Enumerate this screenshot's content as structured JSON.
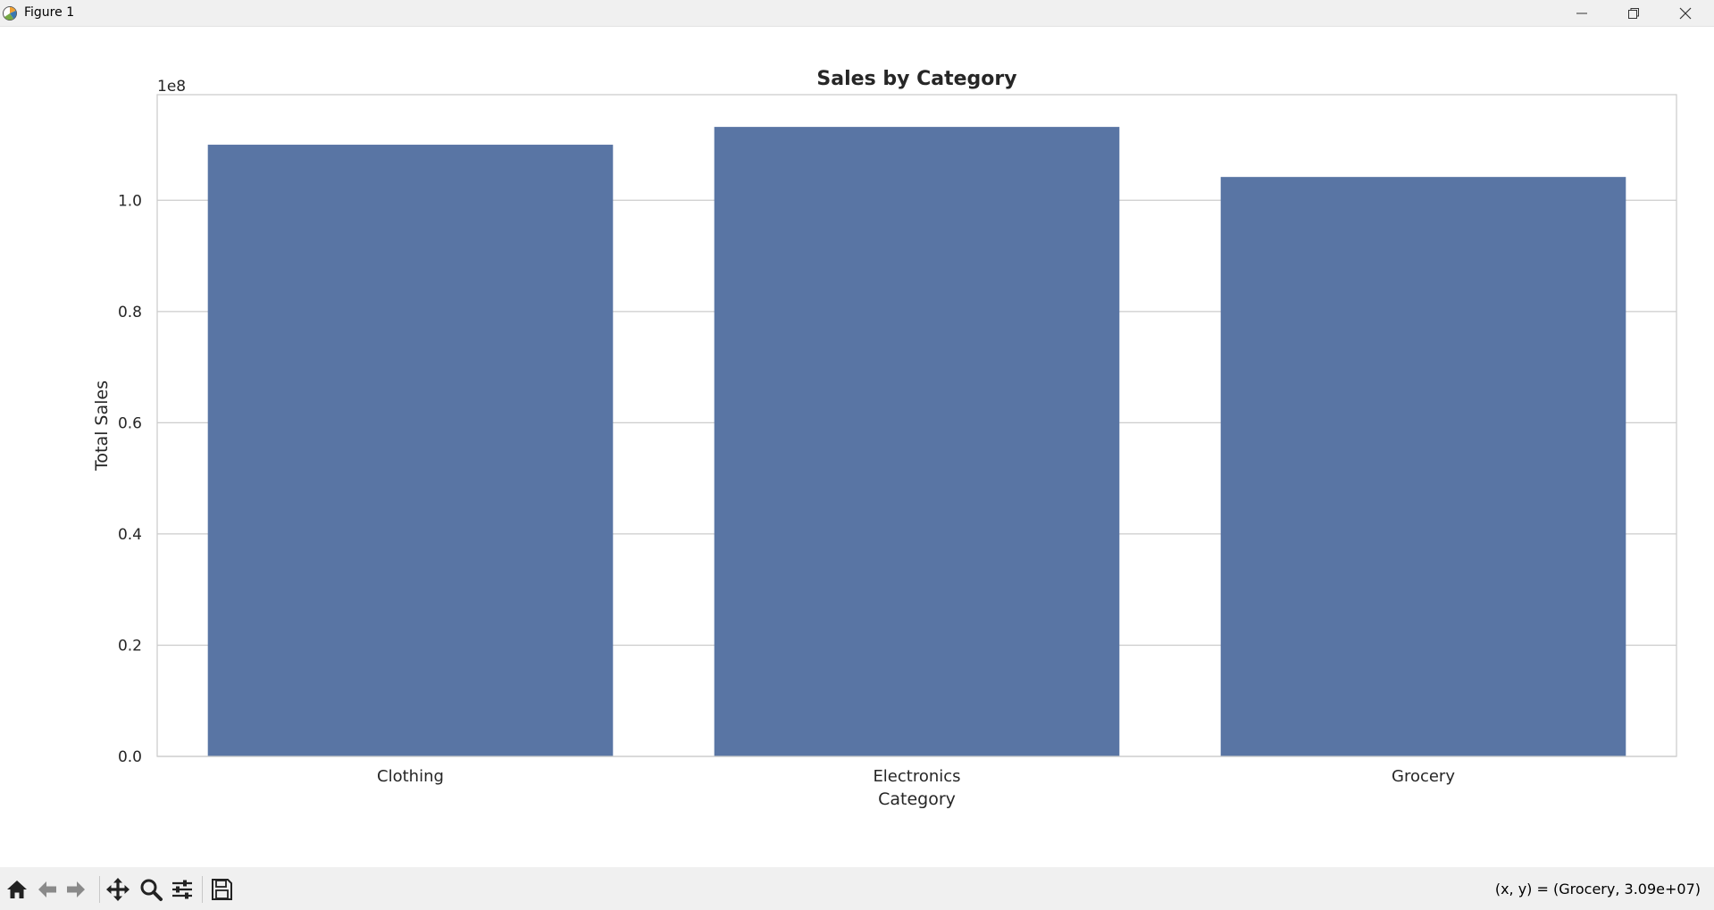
{
  "window": {
    "title": "Figure 1",
    "icons": {
      "app": "matplotlib-icon",
      "minimize": "minimize-icon",
      "restore": "restore-icon",
      "close": "close-icon"
    }
  },
  "chart_data": {
    "type": "bar",
    "title": "Sales by Category",
    "xlabel": "Category",
    "ylabel": "Total Sales",
    "offset_label": "1e8",
    "categories": [
      "Clothing",
      "Electronics",
      "Grocery"
    ],
    "values": [
      110000000,
      113200000,
      104200000
    ],
    "ylim": [
      0,
      119000000
    ],
    "yticks": [
      0,
      20000000,
      40000000,
      60000000,
      80000000,
      100000000
    ],
    "ytick_labels": [
      "0.0",
      "0.2",
      "0.4",
      "0.6",
      "0.8",
      "1.0"
    ],
    "bar_color": "#5975a4",
    "grid": "horizontal"
  },
  "toolbar": {
    "tools": [
      {
        "name": "home",
        "icon": "home-icon"
      },
      {
        "name": "back",
        "icon": "back-arrow-icon"
      },
      {
        "name": "forward",
        "icon": "forward-arrow-icon"
      },
      {
        "name": "pan",
        "icon": "pan-icon"
      },
      {
        "name": "zoom",
        "icon": "zoom-icon"
      },
      {
        "name": "configure",
        "icon": "configure-icon"
      },
      {
        "name": "save",
        "icon": "save-icon"
      }
    ],
    "coords_text": "(x, y) = (Grocery, 3.09e+07)"
  }
}
